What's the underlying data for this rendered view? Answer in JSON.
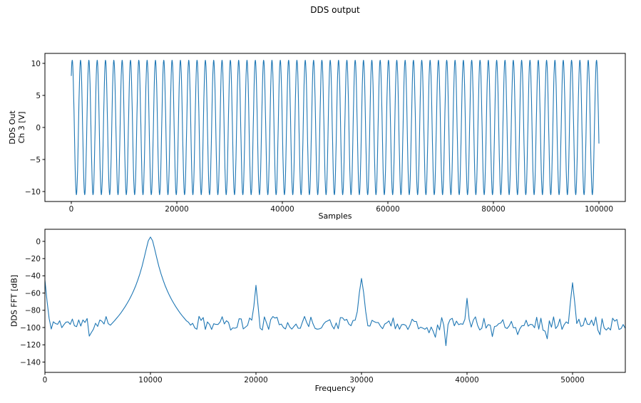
{
  "figure": {
    "title": "DDS output",
    "background_color": "#ffffff",
    "line_color": "#1f77b4",
    "axis_color": "#000000"
  },
  "chart_data": [
    {
      "type": "line",
      "title": "DDS output",
      "xlabel": "Samples",
      "ylabel": "DDS Out\nCh 3 [V]",
      "xlim": [
        -5000,
        105000
      ],
      "ylim": [
        -11.55,
        11.55
      ],
      "x_ticks": [
        0,
        20000,
        40000,
        60000,
        80000,
        100000
      ],
      "y_ticks": [
        -10,
        -5,
        0,
        5,
        10
      ],
      "grid": false,
      "legend": false,
      "series": [
        {
          "name": "dds-output-line",
          "signal": "sine",
          "amplitude": 10.5,
          "cycles": 63.4,
          "phase_rad": 0.87,
          "x_start": 0,
          "x_end": 100000,
          "points_per_cycle": 28
        }
      ]
    },
    {
      "type": "line",
      "title": "",
      "xlabel": "Frequency",
      "ylabel": "DDS FFT [dB]",
      "xlim": [
        0,
        55000
      ],
      "ylim": [
        -152,
        14
      ],
      "x_ticks": [
        0,
        10000,
        20000,
        30000,
        40000,
        50000
      ],
      "y_ticks": [
        -140,
        -120,
        -100,
        -80,
        -60,
        -40,
        -20,
        0
      ],
      "grid": false,
      "legend": false,
      "series": [
        {
          "name": "dds-fft-line",
          "signal": "fft",
          "seed": 11,
          "n_points": 275,
          "x_end": 55000,
          "noise_floor_db": -95,
          "noise_variation_db": 8,
          "peaks": [
            {
              "freq": 0,
              "level_db": -45,
              "width_hz": 150,
              "rolloff_db": 55
            },
            {
              "freq": 10000,
              "level_db": 5,
              "width_hz": 450,
              "rolloff_db": 55
            },
            {
              "freq": 20000,
              "level_db": -51,
              "width_hz": 150,
              "rolloff_db": 55
            },
            {
              "freq": 30000,
              "level_db": -43,
              "width_hz": 200,
              "rolloff_db": 55
            },
            {
              "freq": 40000,
              "level_db": -66,
              "width_hz": 150,
              "rolloff_db": 55
            },
            {
              "freq": 50000,
              "level_db": -48,
              "width_hz": 160,
              "rolloff_db": 55
            }
          ],
          "dips": [
            {
              "freq": 4200,
              "level_db": -110
            },
            {
              "freq": 38000,
              "level_db": -121
            },
            {
              "freq": 47600,
              "level_db": -113
            }
          ]
        }
      ]
    }
  ]
}
